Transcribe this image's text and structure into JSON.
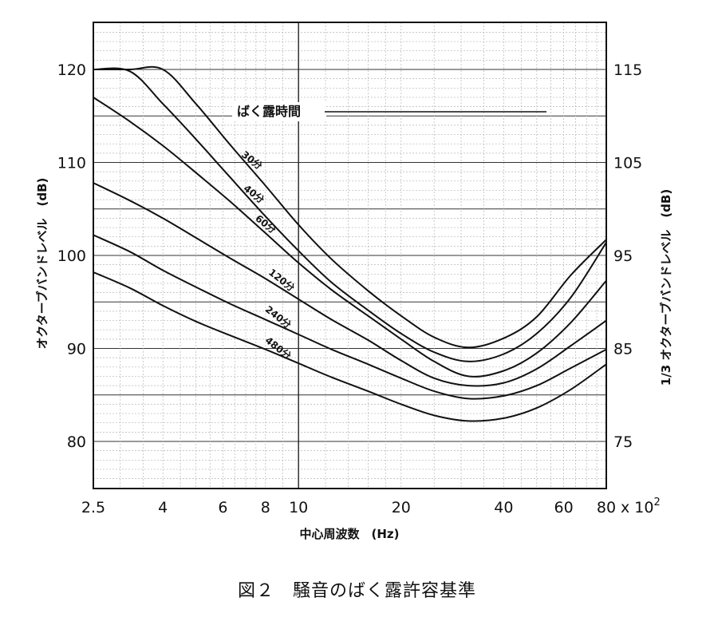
{
  "caption": "図２　騒音のばく露許容基準",
  "chart_data": {
    "type": "line",
    "x_scale": "log",
    "x_unit_multiplier": "x 10",
    "x_unit_multiplier_exp": "2",
    "xlim": [
      2.4,
      85
    ],
    "x_ticks": [
      {
        "value": 2.5,
        "label": "2.5"
      },
      {
        "value": 4,
        "label": "4"
      },
      {
        "value": 6,
        "label": "6"
      },
      {
        "value": 8,
        "label": "8"
      },
      {
        "value": 10,
        "label": "10"
      },
      {
        "value": 20,
        "label": "20"
      },
      {
        "value": 40,
        "label": "40"
      },
      {
        "value": 60,
        "label": "60"
      },
      {
        "value": 80,
        "label": "80"
      }
    ],
    "xlabel": "中心周波数　(Hz)",
    "ylabel_left": "オクターブバンドレベル　(dB)",
    "ylabel_right": "1/3 オクターブバンドレベル　(dB)",
    "ylim_left": [
      75,
      125
    ],
    "ylim_right": [
      70,
      120
    ],
    "y_ticks_left": [
      80,
      90,
      100,
      110,
      120
    ],
    "y_ticks_right": [
      75,
      85,
      95,
      105,
      115
    ],
    "grid": true,
    "legend_title": "ばく露時間",
    "series": [
      {
        "name": "30分",
        "x": [
          2.5,
          3.2,
          4,
          5,
          6.3,
          8,
          10,
          12.5,
          16,
          20,
          25,
          31.5,
          40,
          50,
          63,
          80
        ],
        "y": [
          120,
          120,
          120,
          116.3,
          111.9,
          107.5,
          103.3,
          99.6,
          96.2,
          93.5,
          91.2,
          90.1,
          91.1,
          93.4,
          97.9,
          101.7
        ]
      },
      {
        "name": "40分",
        "x": [
          2.5,
          3.2,
          4,
          5,
          6.3,
          8,
          10,
          12.5,
          16,
          20,
          25,
          31.5,
          40,
          50,
          63,
          80
        ],
        "y": [
          120,
          119.8,
          116.3,
          112.5,
          108.4,
          104.2,
          100.5,
          97.1,
          94.1,
          91.6,
          89.6,
          88.6,
          89.4,
          91.6,
          95.5,
          101.4
        ]
      },
      {
        "name": "60分",
        "x": [
          2.5,
          3.2,
          4,
          5,
          6.3,
          8,
          10,
          12.5,
          16,
          20,
          25,
          31.5,
          40,
          50,
          63,
          80
        ],
        "y": [
          117,
          114.4,
          111.8,
          108.9,
          105.8,
          102.4,
          99.2,
          96.3,
          93.5,
          91.0,
          88.6,
          87.0,
          87.6,
          89.5,
          92.8,
          97.3
        ]
      },
      {
        "name": "120分",
        "x": [
          2.5,
          3.2,
          4,
          5,
          6.3,
          8,
          10,
          12.5,
          16,
          20,
          25,
          31.5,
          40,
          50,
          63,
          80
        ],
        "y": [
          107.8,
          105.9,
          104.0,
          101.9,
          99.7,
          97.5,
          95.3,
          93.1,
          90.9,
          88.7,
          86.8,
          86.0,
          86.3,
          87.8,
          90.3,
          93.0
        ]
      },
      {
        "name": "240分",
        "x": [
          2.5,
          3.2,
          4,
          5,
          6.3,
          8,
          10,
          12.5,
          16,
          20,
          25,
          31.5,
          40,
          50,
          63,
          80
        ],
        "y": [
          102.2,
          100.4,
          98.4,
          96.6,
          94.8,
          93.1,
          91.5,
          89.9,
          88.3,
          86.8,
          85.4,
          84.6,
          84.9,
          86.0,
          87.9,
          89.9
        ]
      },
      {
        "name": "480分",
        "x": [
          2.5,
          3.2,
          4,
          5,
          6.3,
          8,
          10,
          12.5,
          16,
          20,
          25,
          31.5,
          40,
          50,
          63,
          80
        ],
        "y": [
          98.2,
          96.5,
          94.6,
          92.9,
          91.4,
          89.9,
          88.4,
          86.9,
          85.4,
          84.0,
          82.8,
          82.2,
          82.5,
          83.6,
          85.6,
          88.3
        ]
      }
    ]
  }
}
